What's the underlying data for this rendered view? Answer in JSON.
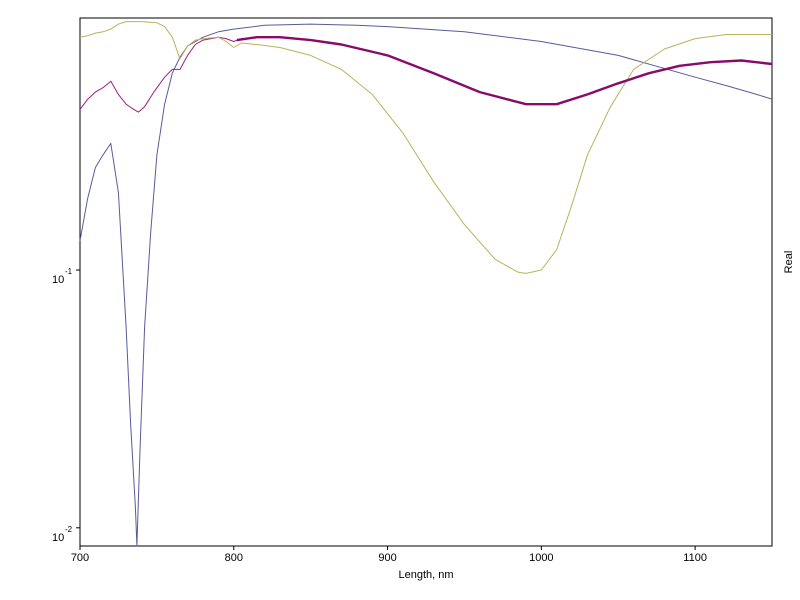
{
  "chart_data": {
    "type": "line",
    "xlabel": "Length, nm",
    "ylabel_right": "Real",
    "yscale": "log",
    "xlim": [
      700,
      1150
    ],
    "ylim": [
      0.0085,
      0.95
    ],
    "grid": false,
    "x_ticks": [
      "700",
      "800",
      "900",
      "1000",
      "1100"
    ],
    "y_ticks": [
      {
        "base": "10",
        "exp": "-1",
        "value": 0.1
      },
      {
        "base": "10",
        "exp": "-2",
        "value": 0.01
      }
    ],
    "series": [
      {
        "color": "#5a5a9a",
        "width": 1,
        "points": [
          [
            700,
            0.13
          ],
          [
            705,
            0.19
          ],
          [
            710,
            0.25
          ],
          [
            715,
            0.28
          ],
          [
            720,
            0.31
          ],
          [
            725,
            0.2
          ],
          [
            730,
            0.06
          ],
          [
            733,
            0.025
          ],
          [
            736,
            0.012
          ],
          [
            737,
            0.0085
          ],
          [
            739,
            0.02
          ],
          [
            742,
            0.06
          ],
          [
            746,
            0.14
          ],
          [
            750,
            0.28
          ],
          [
            755,
            0.44
          ],
          [
            760,
            0.58
          ],
          [
            765,
            0.67
          ],
          [
            770,
            0.74
          ],
          [
            780,
            0.8
          ],
          [
            790,
            0.84
          ],
          [
            800,
            0.86
          ],
          [
            820,
            0.89
          ],
          [
            850,
            0.9
          ],
          [
            880,
            0.89
          ],
          [
            900,
            0.88
          ],
          [
            950,
            0.84
          ],
          [
            1000,
            0.77
          ],
          [
            1050,
            0.68
          ],
          [
            1100,
            0.56
          ],
          [
            1120,
            0.52
          ],
          [
            1140,
            0.48
          ],
          [
            1150,
            0.46
          ]
        ]
      },
      {
        "color": "#a01e80",
        "width": 1,
        "points": [
          [
            700,
            0.42
          ],
          [
            705,
            0.46
          ],
          [
            710,
            0.49
          ],
          [
            715,
            0.51
          ],
          [
            720,
            0.54
          ],
          [
            725,
            0.48
          ],
          [
            730,
            0.44
          ],
          [
            735,
            0.42
          ],
          [
            738,
            0.41
          ],
          [
            742,
            0.43
          ],
          [
            748,
            0.49
          ],
          [
            755,
            0.56
          ],
          [
            760,
            0.6
          ],
          [
            765,
            0.6
          ],
          [
            770,
            0.68
          ],
          [
            775,
            0.75
          ],
          [
            780,
            0.78
          ],
          [
            790,
            0.8
          ],
          [
            795,
            0.79
          ],
          [
            800,
            0.77
          ],
          [
            805,
            0.79
          ],
          [
            815,
            0.8
          ],
          [
            830,
            0.8
          ],
          [
            850,
            0.78
          ],
          [
            870,
            0.75
          ],
          [
            900,
            0.68
          ],
          [
            930,
            0.58
          ],
          [
            960,
            0.49
          ],
          [
            990,
            0.44
          ],
          [
            1010,
            0.44
          ],
          [
            1030,
            0.48
          ],
          [
            1050,
            0.53
          ],
          [
            1070,
            0.58
          ],
          [
            1090,
            0.62
          ],
          [
            1110,
            0.64
          ],
          [
            1130,
            0.65
          ],
          [
            1150,
            0.63
          ]
        ]
      },
      {
        "color": "#b8b45a",
        "width": 1,
        "points": [
          [
            700,
            0.8
          ],
          [
            705,
            0.81
          ],
          [
            710,
            0.83
          ],
          [
            715,
            0.84
          ],
          [
            720,
            0.86
          ],
          [
            725,
            0.9
          ],
          [
            730,
            0.92
          ],
          [
            740,
            0.92
          ],
          [
            750,
            0.91
          ],
          [
            755,
            0.88
          ],
          [
            760,
            0.8
          ],
          [
            765,
            0.66
          ],
          [
            770,
            0.74
          ],
          [
            775,
            0.78
          ],
          [
            780,
            0.79
          ],
          [
            790,
            0.8
          ],
          [
            795,
            0.77
          ],
          [
            800,
            0.73
          ],
          [
            805,
            0.76
          ],
          [
            815,
            0.75
          ],
          [
            830,
            0.73
          ],
          [
            850,
            0.68
          ],
          [
            870,
            0.6
          ],
          [
            890,
            0.48
          ],
          [
            910,
            0.34
          ],
          [
            930,
            0.22
          ],
          [
            950,
            0.15
          ],
          [
            970,
            0.11
          ],
          [
            985,
            0.098
          ],
          [
            990,
            0.097
          ],
          [
            1000,
            0.1
          ],
          [
            1010,
            0.12
          ],
          [
            1020,
            0.18
          ],
          [
            1030,
            0.28
          ],
          [
            1045,
            0.43
          ],
          [
            1060,
            0.6
          ],
          [
            1080,
            0.72
          ],
          [
            1100,
            0.79
          ],
          [
            1120,
            0.82
          ],
          [
            1140,
            0.82
          ],
          [
            1150,
            0.82
          ]
        ]
      },
      {
        "color": "#8a0a6a",
        "width": 2.4,
        "points": [
          [
            802,
            0.78
          ],
          [
            815,
            0.8
          ],
          [
            830,
            0.8
          ],
          [
            850,
            0.78
          ],
          [
            870,
            0.75
          ],
          [
            900,
            0.68
          ],
          [
            930,
            0.58
          ],
          [
            960,
            0.49
          ],
          [
            990,
            0.44
          ],
          [
            1010,
            0.44
          ],
          [
            1030,
            0.48
          ],
          [
            1050,
            0.53
          ],
          [
            1070,
            0.58
          ],
          [
            1090,
            0.62
          ],
          [
            1110,
            0.64
          ],
          [
            1130,
            0.65
          ],
          [
            1150,
            0.63
          ]
        ]
      }
    ]
  }
}
